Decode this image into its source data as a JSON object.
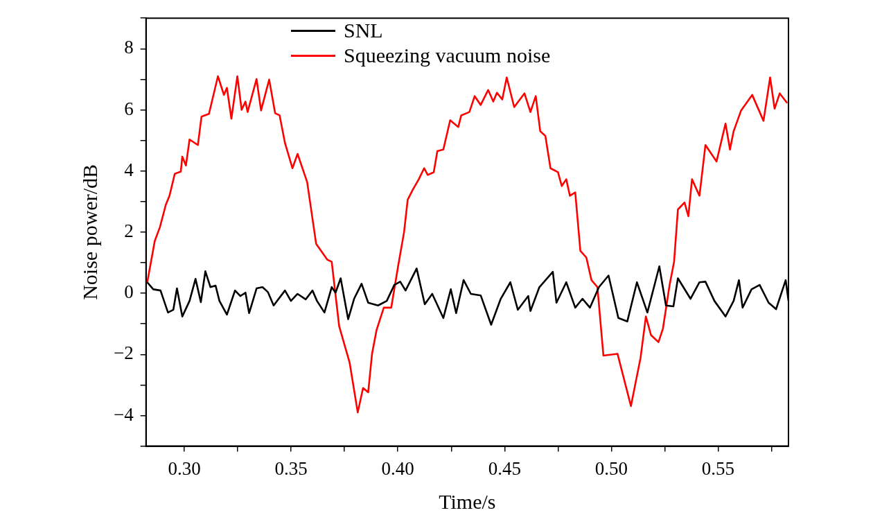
{
  "chart_data": {
    "type": "line",
    "xlabel": "Time/s",
    "ylabel": "Noise power/dB",
    "xlim": [
      0.282,
      0.583
    ],
    "ylim": [
      -5,
      9
    ],
    "xticks": [
      {
        "value": 0.3,
        "label": "0.30"
      },
      {
        "value": 0.325,
        "label": null
      },
      {
        "value": 0.35,
        "label": "0.35"
      },
      {
        "value": 0.375,
        "label": null
      },
      {
        "value": 0.4,
        "label": "0.40"
      },
      {
        "value": 0.425,
        "label": null
      },
      {
        "value": 0.45,
        "label": "0.45"
      },
      {
        "value": 0.475,
        "label": null
      },
      {
        "value": 0.5,
        "label": "0.50"
      },
      {
        "value": 0.525,
        "label": null
      },
      {
        "value": 0.55,
        "label": "0.55"
      },
      {
        "value": 0.575,
        "label": null
      }
    ],
    "yticks": [
      {
        "value": -5,
        "label": null
      },
      {
        "value": -4,
        "label": "−4"
      },
      {
        "value": -3,
        "label": null
      },
      {
        "value": -2,
        "label": "−2"
      },
      {
        "value": -1,
        "label": null
      },
      0,
      {
        "value": 1,
        "label": null
      },
      2,
      {
        "value": 3,
        "label": null
      },
      4,
      {
        "value": 5,
        "label": null
      },
      6,
      {
        "value": 7,
        "label": null
      },
      8,
      {
        "value": 9,
        "label": null
      }
    ],
    "grid": false,
    "legend": "top",
    "marker": "none",
    "line_style": "solid",
    "series": [
      {
        "name": "SNL",
        "color": "#000000",
        "x": [
          0.2826,
          0.2854,
          0.2888,
          0.2923,
          0.2948,
          0.2965,
          0.299,
          0.3024,
          0.3052,
          0.3077,
          0.3098,
          0.3122,
          0.3146,
          0.3164,
          0.3199,
          0.3237,
          0.3262,
          0.3286,
          0.3303,
          0.3338,
          0.3366,
          0.3391,
          0.3418,
          0.3471,
          0.3499,
          0.353,
          0.3568,
          0.36,
          0.3621,
          0.3656,
          0.369,
          0.3708,
          0.3732,
          0.3767,
          0.3795,
          0.383,
          0.3861,
          0.3907,
          0.3948,
          0.3983,
          0.4011,
          0.4036,
          0.4088,
          0.4126,
          0.4161,
          0.4213,
          0.4248,
          0.4273,
          0.4308,
          0.4342,
          0.4388,
          0.4437,
          0.4482,
          0.4527,
          0.4562,
          0.4611,
          0.4621,
          0.4663,
          0.4726,
          0.4743,
          0.4789,
          0.4831,
          0.4865,
          0.49,
          0.4942,
          0.4987,
          0.5033,
          0.5075,
          0.512,
          0.5169,
          0.5225,
          0.5256,
          0.5291,
          0.5312,
          0.5371,
          0.5413,
          0.5441,
          0.5483,
          0.5535,
          0.5573,
          0.5598,
          0.5615,
          0.5657,
          0.5695,
          0.5737,
          0.5772,
          0.5817,
          0.583
        ],
        "values": [
          0.36,
          0.13,
          0.09,
          -0.63,
          -0.54,
          0.16,
          -0.76,
          -0.25,
          0.47,
          -0.29,
          0.72,
          0.2,
          0.25,
          -0.25,
          -0.7,
          0.09,
          -0.09,
          0.02,
          -0.65,
          0.16,
          0.2,
          0.04,
          -0.4,
          0.09,
          -0.25,
          -0.02,
          -0.2,
          0.09,
          -0.25,
          -0.63,
          0.2,
          0.02,
          0.49,
          -0.85,
          -0.18,
          0.31,
          -0.31,
          -0.4,
          -0.25,
          0.27,
          0.38,
          0.09,
          0.81,
          -0.36,
          -0.02,
          -0.81,
          0.13,
          -0.65,
          0.43,
          -0.02,
          -0.07,
          -1.03,
          -0.18,
          0.36,
          -0.54,
          -0.09,
          -0.58,
          0.2,
          0.7,
          -0.31,
          0.36,
          -0.47,
          -0.18,
          -0.47,
          0.2,
          0.58,
          -0.81,
          -0.92,
          0.36,
          -0.63,
          0.88,
          -0.4,
          -0.43,
          0.49,
          -0.18,
          0.36,
          0.38,
          -0.25,
          -0.76,
          -0.25,
          0.43,
          -0.47,
          0.13,
          0.27,
          -0.31,
          -0.52,
          0.43,
          -0.25
        ]
      },
      {
        "name": "Squeezing vacuum noise",
        "color": "#ff0000",
        "x": [
          0.2826,
          0.2861,
          0.2885,
          0.2913,
          0.293,
          0.2955,
          0.2983,
          0.299,
          0.3007,
          0.3024,
          0.3063,
          0.308,
          0.3115,
          0.3157,
          0.3185,
          0.3199,
          0.322,
          0.3248,
          0.3268,
          0.3286,
          0.3296,
          0.3338,
          0.3359,
          0.3397,
          0.3425,
          0.3446,
          0.3471,
          0.3506,
          0.353,
          0.3575,
          0.3617,
          0.3669,
          0.369,
          0.3725,
          0.3774,
          0.3812,
          0.3837,
          0.3861,
          0.3879,
          0.39,
          0.3934,
          0.3969,
          0.4001,
          0.4029,
          0.4046,
          0.407,
          0.4098,
          0.4123,
          0.414,
          0.4168,
          0.4185,
          0.4213,
          0.4245,
          0.4283,
          0.4297,
          0.4335,
          0.436,
          0.4388,
          0.4423,
          0.4447,
          0.4464,
          0.4489,
          0.451,
          0.4545,
          0.4593,
          0.4621,
          0.4646,
          0.4667,
          0.4691,
          0.4715,
          0.475,
          0.4768,
          0.4789,
          0.4806,
          0.4831,
          0.4855,
          0.4883,
          0.4907,
          0.4935,
          0.4963,
          0.5029,
          0.5092,
          0.5137,
          0.5162,
          0.5186,
          0.5221,
          0.5242,
          0.5273,
          0.5294,
          0.5312,
          0.5343,
          0.5361,
          0.5378,
          0.5413,
          0.5441,
          0.5493,
          0.5535,
          0.5556,
          0.5573,
          0.5608,
          0.566,
          0.5713,
          0.5744,
          0.5765,
          0.5789,
          0.5824
        ],
        "values": [
          0.36,
          1.71,
          2.16,
          2.9,
          3.19,
          3.91,
          3.98,
          4.47,
          4.18,
          5.03,
          4.85,
          5.78,
          5.87,
          7.1,
          6.49,
          6.72,
          5.71,
          7.1,
          6.0,
          6.27,
          5.93,
          7.01,
          5.98,
          6.99,
          5.89,
          5.82,
          4.92,
          4.09,
          4.56,
          3.64,
          1.62,
          1.1,
          1.03,
          -1.08,
          -2.27,
          -3.9,
          -3.1,
          -3.24,
          -1.98,
          -1.21,
          -0.47,
          -0.47,
          0.88,
          2.0,
          3.06,
          3.39,
          3.73,
          4.09,
          3.87,
          3.96,
          4.65,
          4.7,
          5.66,
          5.44,
          5.82,
          5.93,
          6.45,
          6.16,
          6.65,
          6.27,
          6.56,
          6.34,
          7.06,
          6.09,
          6.54,
          5.93,
          6.45,
          5.3,
          5.15,
          4.09,
          3.96,
          3.51,
          3.73,
          3.19,
          3.3,
          1.39,
          1.17,
          0.43,
          0.2,
          -2.04,
          -1.98,
          -3.69,
          -2.11,
          -0.76,
          -1.37,
          -1.6,
          -1.15,
          0.27,
          1.03,
          2.74,
          2.97,
          2.52,
          3.73,
          3.19,
          4.85,
          4.31,
          5.55,
          4.7,
          5.3,
          5.98,
          6.49,
          5.64,
          7.06,
          6.04,
          6.54,
          6.22
        ]
      }
    ]
  }
}
